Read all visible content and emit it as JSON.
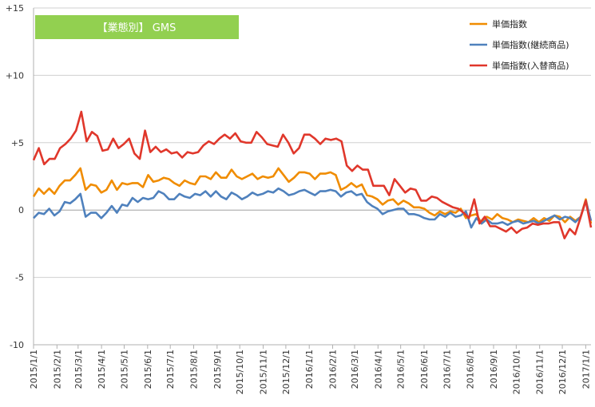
{
  "chart_data": {
    "type": "line",
    "title": "【業態別】 GMS",
    "title_box_color": "#92d050",
    "ylim": [
      -10,
      15
    ],
    "yticks": [
      {
        "value": 15,
        "label": "+15"
      },
      {
        "value": 10,
        "label": "+10"
      },
      {
        "value": 5,
        "label": "+5"
      },
      {
        "value": 0,
        "label": "0"
      },
      {
        "value": -5,
        "label": "-5"
      },
      {
        "value": -10,
        "label": "-10"
      }
    ],
    "grid": "horizontal",
    "legend_position": "top-right",
    "x_tick_labels": [
      "2015/1/1",
      "2015/2/1",
      "2015/3/1",
      "2015/4/1",
      "2015/5/1",
      "2015/6/1",
      "2015/7/1",
      "2015/8/1",
      "2015/9/1",
      "2015/10/1",
      "2015/11/1",
      "2015/12/1",
      "2016/1/1",
      "2016/2/1",
      "2016/3/1",
      "2016/4/1",
      "2016/5/1",
      "2016/6/1",
      "2016/7/1",
      "2016/8/1",
      "2016/9/1",
      "2016/10/1",
      "2016/11/1",
      "2016/12/1",
      "2017/1/1"
    ],
    "x_start": "2015/1/1",
    "x_end": "2017/1/8",
    "series": [
      {
        "name": "単価指数",
        "color": "#f08c00",
        "values": [
          1.0,
          1.6,
          1.2,
          1.6,
          1.2,
          1.8,
          2.2,
          2.2,
          2.6,
          3.1,
          1.5,
          1.9,
          1.8,
          1.3,
          1.5,
          2.2,
          1.5,
          2.0,
          1.9,
          2.0,
          2.0,
          1.7,
          2.6,
          2.1,
          2.2,
          2.4,
          2.3,
          2.0,
          1.8,
          2.2,
          2.0,
          1.9,
          2.5,
          2.5,
          2.3,
          2.8,
          2.4,
          2.4,
          3.0,
          2.5,
          2.3,
          2.5,
          2.7,
          2.3,
          2.5,
          2.4,
          2.5,
          3.1,
          2.6,
          2.1,
          2.4,
          2.8,
          2.8,
          2.7,
          2.3,
          2.7,
          2.7,
          2.8,
          2.6,
          1.5,
          1.7,
          2.0,
          1.7,
          1.9,
          1.1,
          1.0,
          0.8,
          0.4,
          0.7,
          0.8,
          0.4,
          0.7,
          0.5,
          0.2,
          0.2,
          0.1,
          -0.2,
          -0.4,
          -0.1,
          -0.3,
          -0.1,
          -0.2,
          0.1,
          -0.6,
          -0.4,
          -0.3,
          -1.0,
          -0.5,
          -0.7,
          -0.3,
          -0.6,
          -0.7,
          -0.9,
          -0.7,
          -0.8,
          -0.9,
          -0.6,
          -0.9,
          -0.6,
          -0.8,
          -0.4,
          -0.5,
          -0.9,
          -0.5,
          -0.8,
          -0.5,
          0.8,
          -1.0
        ]
      },
      {
        "name": "単価指数(継続商品)",
        "color": "#4f81bd",
        "values": [
          -0.6,
          -0.2,
          -0.3,
          0.1,
          -0.4,
          -0.1,
          0.6,
          0.5,
          0.8,
          1.2,
          -0.5,
          -0.2,
          -0.2,
          -0.6,
          -0.2,
          0.3,
          -0.2,
          0.4,
          0.3,
          0.9,
          0.6,
          0.9,
          0.8,
          0.9,
          1.4,
          1.2,
          0.8,
          0.8,
          1.2,
          1.0,
          0.9,
          1.2,
          1.1,
          1.4,
          1.0,
          1.4,
          1.0,
          0.8,
          1.3,
          1.1,
          0.8,
          1.0,
          1.3,
          1.1,
          1.2,
          1.4,
          1.3,
          1.6,
          1.4,
          1.1,
          1.2,
          1.4,
          1.5,
          1.3,
          1.1,
          1.4,
          1.4,
          1.5,
          1.4,
          1.0,
          1.3,
          1.4,
          1.1,
          1.2,
          0.6,
          0.3,
          0.1,
          -0.3,
          -0.1,
          0.0,
          0.1,
          0.1,
          -0.3,
          -0.3,
          -0.4,
          -0.6,
          -0.7,
          -0.7,
          -0.3,
          -0.5,
          -0.2,
          -0.5,
          -0.4,
          -0.1,
          -1.3,
          -0.6,
          -1.0,
          -0.7,
          -1.0,
          -1.0,
          -0.9,
          -1.1,
          -0.9,
          -0.8,
          -1.0,
          -0.9,
          -0.8,
          -1.0,
          -0.8,
          -0.6,
          -0.4,
          -0.7,
          -0.5,
          -0.6,
          -0.9,
          -0.5,
          0.7,
          -0.8
        ]
      },
      {
        "name": "単価指数(入替商品)",
        "color": "#e0372b",
        "values": [
          3.7,
          4.6,
          3.4,
          3.8,
          3.8,
          4.6,
          4.9,
          5.3,
          5.9,
          7.3,
          5.1,
          5.8,
          5.5,
          4.4,
          4.5,
          5.3,
          4.6,
          4.9,
          5.3,
          4.2,
          3.8,
          5.9,
          4.3,
          4.7,
          4.3,
          4.5,
          4.2,
          4.3,
          3.9,
          4.3,
          4.2,
          4.3,
          4.8,
          5.1,
          4.9,
          5.3,
          5.6,
          5.3,
          5.7,
          5.1,
          5.0,
          5.0,
          5.8,
          5.4,
          4.9,
          4.8,
          4.7,
          5.6,
          5.0,
          4.2,
          4.6,
          5.6,
          5.6,
          5.3,
          4.9,
          5.3,
          5.2,
          5.3,
          5.1,
          3.3,
          2.9,
          3.3,
          3.0,
          3.0,
          1.8,
          1.8,
          1.8,
          1.1,
          2.3,
          1.8,
          1.3,
          1.6,
          1.5,
          0.7,
          0.7,
          1.0,
          0.9,
          0.6,
          0.4,
          0.2,
          0.1,
          -0.2,
          -0.6,
          0.8,
          -1.0,
          -0.5,
          -1.2,
          -1.2,
          -1.4,
          -1.6,
          -1.3,
          -1.7,
          -1.4,
          -1.3,
          -1.0,
          -1.1,
          -1.0,
          -1.0,
          -0.9,
          -0.9,
          -2.1,
          -1.4,
          -1.8,
          -0.6,
          0.7,
          -1.3
        ]
      }
    ]
  }
}
